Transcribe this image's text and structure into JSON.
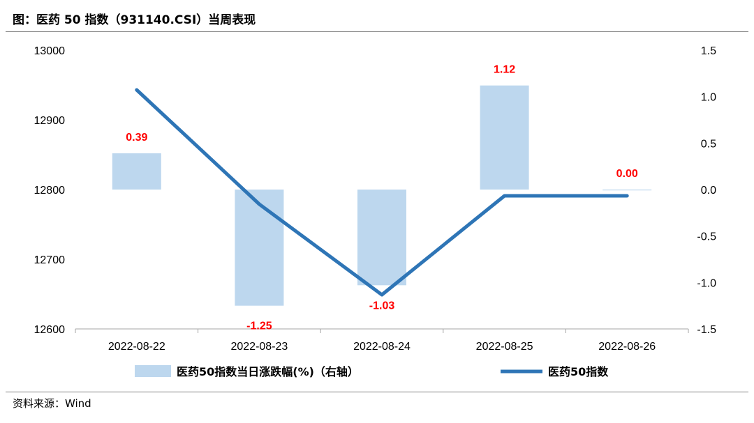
{
  "header": {
    "title": "图：医药 50 指数（931140.CSI）当周表现"
  },
  "footer": {
    "source": "资料来源：Wind"
  },
  "chart_data": {
    "type": "bar",
    "categories": [
      "2022-08-22",
      "2022-08-23",
      "2022-08-24",
      "2022-08-25",
      "2022-08-26"
    ],
    "series": [
      {
        "name": "医药50指数当日涨跌幅(%)（右轴）",
        "type": "bar",
        "axis": "right",
        "color": "#bdd7ee",
        "values": [
          0.39,
          -1.25,
          -1.03,
          1.12,
          0.0
        ],
        "labels": [
          "0.39",
          "-1.25",
          "-1.03",
          "1.12",
          "0.00"
        ]
      },
      {
        "name": "医药50指数",
        "type": "line",
        "axis": "left",
        "color": "#2e75b6",
        "values": [
          12943,
          12779,
          12649,
          12791,
          12791
        ]
      }
    ],
    "y_left": {
      "min": 12600,
      "max": 13000,
      "ticks": [
        "12600",
        "12700",
        "12800",
        "12900",
        "13000"
      ]
    },
    "y_right": {
      "min": -1.5,
      "max": 1.5,
      "ticks": [
        "-1.5",
        "-1.0",
        "-0.5",
        "0.0",
        "0.5",
        "1.0",
        "1.5"
      ]
    },
    "grid": false,
    "legend_position": "bottom",
    "label_color": "#ff0000"
  }
}
